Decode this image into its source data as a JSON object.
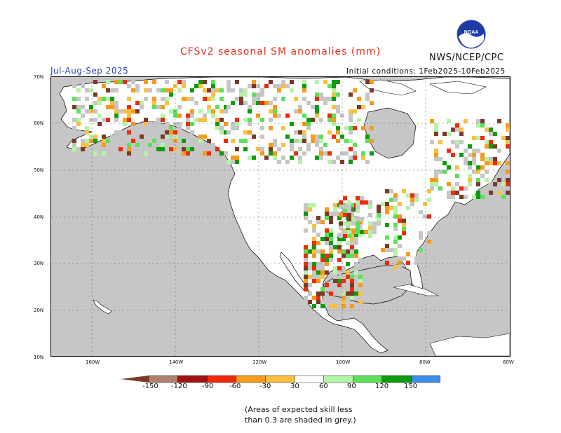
{
  "title": "CFSv2 seasonal SM anomalies (mm)",
  "agency": "NWS/NCEP/CPC",
  "logo_text": "NOAA",
  "season": "Jul-Aug-Sep 2025",
  "initial_conditions": "Initial conditions: 1Feb2025-10Feb2025",
  "lat_labels": [
    "70N",
    "60N",
    "50N",
    "40N",
    "30N",
    "20N",
    "10N"
  ],
  "lon_labels": [
    "160W",
    "140W",
    "120W",
    "100W",
    "80W",
    "60W"
  ],
  "colorbar": {
    "labels": [
      "-150",
      "-120",
      "-90",
      "-60",
      "-30",
      "30",
      "60",
      "90",
      "120",
      "150"
    ],
    "colors": [
      "#7a3a28",
      "#b08070",
      "#a01414",
      "#f02a0a",
      "#f89a1c",
      "#fcc040",
      "#ffffff",
      "#b4f4a8",
      "#5ce05c",
      "#0c9c0c",
      "#3c8ce8",
      "#1a5ad8"
    ]
  },
  "skill_note_line1": "(Areas of expected skill less",
  "skill_note_line2": "than 0.3 are shaded in grey.)",
  "colors": {
    "ocean": "#c6c6c6",
    "land": "#ffffff",
    "title": "#e8301c",
    "season": "#2a3db8"
  }
}
